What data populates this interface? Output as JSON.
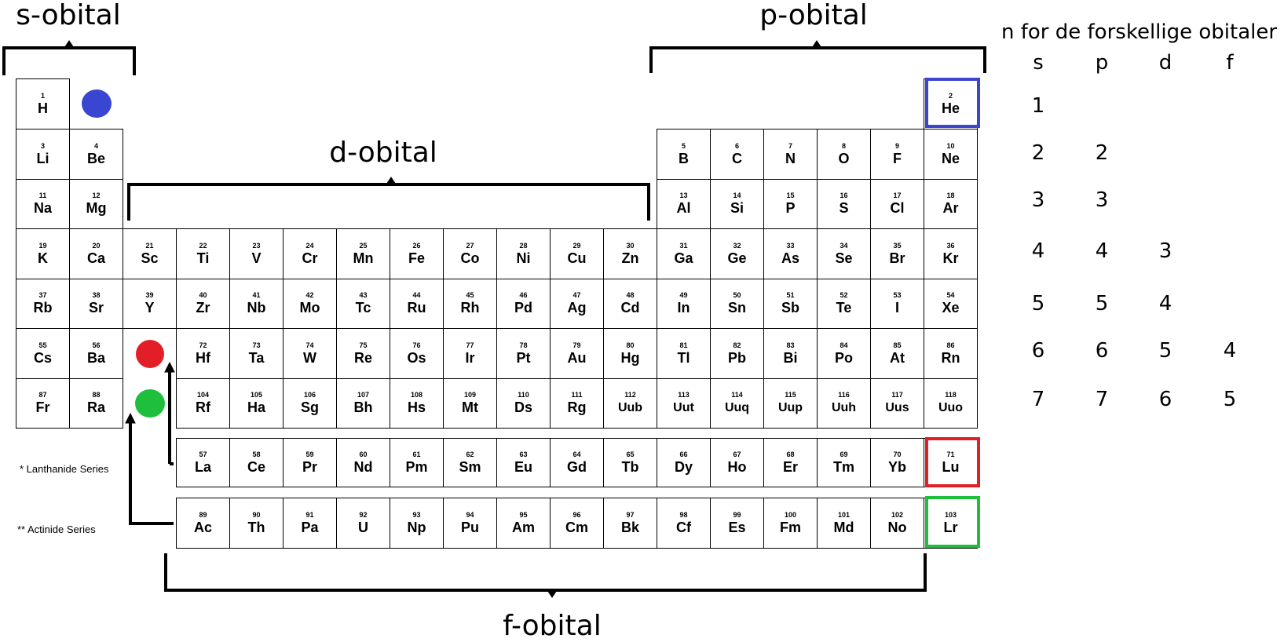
{
  "labels": {
    "s": "s-obital",
    "p": "p-obital",
    "d": "d-obital",
    "f": "f-obital"
  },
  "series_labels": {
    "lanthanide": "* Lanthanide Series",
    "actinide": "** Actinide Series"
  },
  "legend": {
    "title": "n for de forskellige obitaler",
    "headers": [
      "s",
      "p",
      "d",
      "f"
    ],
    "rows": [
      [
        "1",
        "",
        "",
        ""
      ],
      [
        "2",
        "2",
        "",
        ""
      ],
      [
        "3",
        "3",
        "",
        ""
      ],
      [
        "4",
        "4",
        "3",
        ""
      ],
      [
        "5",
        "5",
        "4",
        ""
      ],
      [
        "6",
        "6",
        "5",
        "4"
      ],
      [
        "7",
        "7",
        "6",
        "5"
      ]
    ]
  },
  "markers": {
    "blue": "#3a46d2",
    "red": "#e21f26",
    "green": "#1ebf3d"
  },
  "main_rows": [
    [
      [
        "1",
        "H"
      ]
    ],
    [
      [
        "3",
        "Li"
      ],
      [
        "4",
        "Be"
      ],
      [
        "5",
        "B"
      ],
      [
        "6",
        "C"
      ],
      [
        "7",
        "N"
      ],
      [
        "8",
        "O"
      ],
      [
        "9",
        "F"
      ],
      [
        "10",
        "Ne"
      ]
    ],
    [
      [
        "11",
        "Na"
      ],
      [
        "12",
        "Mg"
      ],
      [
        "13",
        "Al"
      ],
      [
        "14",
        "Si"
      ],
      [
        "15",
        "P"
      ],
      [
        "16",
        "S"
      ],
      [
        "17",
        "Cl"
      ],
      [
        "18",
        "Ar"
      ]
    ],
    [
      [
        "19",
        "K"
      ],
      [
        "20",
        "Ca"
      ],
      [
        "21",
        "Sc"
      ],
      [
        "22",
        "Ti"
      ],
      [
        "23",
        "V"
      ],
      [
        "24",
        "Cr"
      ],
      [
        "25",
        "Mn"
      ],
      [
        "26",
        "Fe"
      ],
      [
        "27",
        "Co"
      ],
      [
        "28",
        "Ni"
      ],
      [
        "29",
        "Cu"
      ],
      [
        "30",
        "Zn"
      ],
      [
        "31",
        "Ga"
      ],
      [
        "32",
        "Ge"
      ],
      [
        "33",
        "As"
      ],
      [
        "34",
        "Se"
      ],
      [
        "35",
        "Br"
      ],
      [
        "36",
        "Kr"
      ]
    ],
    [
      [
        "37",
        "Rb"
      ],
      [
        "38",
        "Sr"
      ],
      [
        "39",
        "Y"
      ],
      [
        "40",
        "Zr"
      ],
      [
        "41",
        "Nb"
      ],
      [
        "42",
        "Mo"
      ],
      [
        "43",
        "Tc"
      ],
      [
        "44",
        "Ru"
      ],
      [
        "45",
        "Rh"
      ],
      [
        "46",
        "Pd"
      ],
      [
        "47",
        "Ag"
      ],
      [
        "48",
        "Cd"
      ],
      [
        "49",
        "In"
      ],
      [
        "50",
        "Sn"
      ],
      [
        "51",
        "Sb"
      ],
      [
        "52",
        "Te"
      ],
      [
        "53",
        "I"
      ],
      [
        "54",
        "Xe"
      ]
    ],
    [
      [
        "55",
        "Cs"
      ],
      [
        "56",
        "Ba"
      ],
      [
        "72",
        "Hf"
      ],
      [
        "73",
        "Ta"
      ],
      [
        "74",
        "W"
      ],
      [
        "75",
        "Re"
      ],
      [
        "76",
        "Os"
      ],
      [
        "77",
        "Ir"
      ],
      [
        "78",
        "Pt"
      ],
      [
        "79",
        "Au"
      ],
      [
        "80",
        "Hg"
      ],
      [
        "81",
        "Tl"
      ],
      [
        "82",
        "Pb"
      ],
      [
        "83",
        "Bi"
      ],
      [
        "84",
        "Po"
      ],
      [
        "85",
        "At"
      ],
      [
        "86",
        "Rn"
      ]
    ],
    [
      [
        "87",
        "Fr"
      ],
      [
        "88",
        "Ra"
      ],
      [
        "104",
        "Rf"
      ],
      [
        "105",
        "Ha"
      ],
      [
        "106",
        "Sg"
      ],
      [
        "107",
        "Bh"
      ],
      [
        "108",
        "Hs"
      ],
      [
        "109",
        "Mt"
      ],
      [
        "110",
        "Ds"
      ],
      [
        "111",
        "Rg"
      ],
      [
        "112",
        "Uub"
      ],
      [
        "113",
        "Uut"
      ],
      [
        "114",
        "Uuq"
      ],
      [
        "115",
        "Uup"
      ],
      [
        "116",
        "Uuh"
      ],
      [
        "117",
        "Uus"
      ],
      [
        "118",
        "Uuo"
      ]
    ]
  ],
  "helium": [
    "2",
    "He"
  ],
  "lanthanides": [
    [
      "57",
      "La"
    ],
    [
      "58",
      "Ce"
    ],
    [
      "59",
      "Pr"
    ],
    [
      "60",
      "Nd"
    ],
    [
      "61",
      "Pm"
    ],
    [
      "62",
      "Sm"
    ],
    [
      "63",
      "Eu"
    ],
    [
      "64",
      "Gd"
    ],
    [
      "65",
      "Tb"
    ],
    [
      "66",
      "Dy"
    ],
    [
      "67",
      "Ho"
    ],
    [
      "68",
      "Er"
    ],
    [
      "69",
      "Tm"
    ],
    [
      "70",
      "Yb"
    ],
    [
      "71",
      "Lu"
    ]
  ],
  "actinides": [
    [
      "89",
      "Ac"
    ],
    [
      "90",
      "Th"
    ],
    [
      "91",
      "Pa"
    ],
    [
      "92",
      "U"
    ],
    [
      "93",
      "Np"
    ],
    [
      "94",
      "Pu"
    ],
    [
      "95",
      "Am"
    ],
    [
      "96",
      "Cm"
    ],
    [
      "97",
      "Bk"
    ],
    [
      "98",
      "Cf"
    ],
    [
      "99",
      "Es"
    ],
    [
      "100",
      "Fm"
    ],
    [
      "101",
      "Md"
    ],
    [
      "102",
      "No"
    ],
    [
      "103",
      "Lr"
    ]
  ]
}
